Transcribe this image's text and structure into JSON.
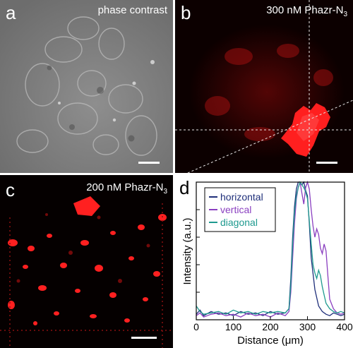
{
  "panels": {
    "a": {
      "letter": "a",
      "title": "phase contrast"
    },
    "b": {
      "letter": "b",
      "title_main": "300 nM Phazr-N",
      "title_sub": "3"
    },
    "c": {
      "letter": "c",
      "title_main": "200 nM Phazr-N",
      "title_sub": "3"
    },
    "d": {
      "letter": "d"
    }
  },
  "colors": {
    "horizontal": "#1f2f7a",
    "vertical": "#8a3fc0",
    "diagonal": "#1f9a8f",
    "fluorescence": "#ff1a1a"
  },
  "chart_data": {
    "type": "line",
    "xlabel": "Distance (μm)",
    "ylabel": "Intensity (a.u.)",
    "xlim": [
      0,
      400
    ],
    "ylim": [
      0,
      1
    ],
    "xticks": [
      0,
      100,
      200,
      300,
      400
    ],
    "yticks": [
      0,
      0.2,
      0.4,
      0.6,
      0.8,
      1.0
    ],
    "ytick_labels_visible": false,
    "grid": false,
    "legend_position": "top-left",
    "series": [
      {
        "name": "horizontal",
        "color": "#1f2f7a",
        "x": [
          0,
          10,
          20,
          40,
          60,
          80,
          100,
          120,
          140,
          160,
          180,
          200,
          220,
          240,
          250,
          255,
          260,
          265,
          270,
          275,
          280,
          285,
          290,
          295,
          300,
          305,
          310,
          320,
          330,
          340,
          350,
          360,
          370,
          380,
          390,
          400
        ],
        "y": [
          0.04,
          0.07,
          0.03,
          0.06,
          0.04,
          0.05,
          0.03,
          0.06,
          0.04,
          0.05,
          0.03,
          0.06,
          0.04,
          0.05,
          0.08,
          0.3,
          0.6,
          0.82,
          0.95,
          1.0,
          1.0,
          0.98,
          1.0,
          0.94,
          0.9,
          0.7,
          0.45,
          0.22,
          0.1,
          0.06,
          0.04,
          0.03,
          0.05,
          0.04,
          0.03,
          0.04
        ]
      },
      {
        "name": "vertical",
        "color": "#8a3fc0",
        "x": [
          0,
          10,
          20,
          40,
          60,
          80,
          100,
          120,
          140,
          160,
          180,
          200,
          220,
          240,
          250,
          255,
          260,
          265,
          270,
          275,
          280,
          285,
          290,
          295,
          300,
          305,
          310,
          315,
          320,
          325,
          330,
          335,
          340,
          345,
          350,
          355,
          360,
          370,
          380,
          390,
          400
        ],
        "y": [
          0.03,
          0.05,
          0.02,
          0.04,
          0.05,
          0.03,
          0.04,
          0.02,
          0.05,
          0.03,
          0.04,
          0.02,
          0.05,
          0.03,
          0.06,
          0.2,
          0.45,
          0.7,
          0.88,
          0.96,
          1.0,
          0.92,
          0.84,
          0.96,
          1.0,
          0.95,
          0.8,
          0.68,
          0.6,
          0.66,
          0.62,
          0.52,
          0.48,
          0.55,
          0.5,
          0.32,
          0.15,
          0.08,
          0.05,
          0.04,
          0.05
        ]
      },
      {
        "name": "diagonal",
        "color": "#1f9a8f",
        "x": [
          0,
          10,
          20,
          40,
          60,
          80,
          100,
          120,
          140,
          160,
          180,
          200,
          220,
          240,
          250,
          255,
          260,
          265,
          270,
          275,
          280,
          285,
          290,
          295,
          300,
          305,
          310,
          315,
          320,
          325,
          330,
          335,
          340,
          345,
          350,
          360,
          370,
          380,
          390,
          400
        ],
        "y": [
          0.1,
          0.06,
          0.04,
          0.05,
          0.06,
          0.04,
          0.07,
          0.05,
          0.06,
          0.04,
          0.06,
          0.05,
          0.06,
          0.05,
          0.08,
          0.25,
          0.55,
          0.78,
          0.9,
          0.96,
          1.0,
          0.98,
          0.96,
          0.93,
          0.88,
          0.72,
          0.55,
          0.4,
          0.34,
          0.3,
          0.36,
          0.32,
          0.24,
          0.18,
          0.12,
          0.08,
          0.06,
          0.05,
          0.06,
          0.05
        ]
      }
    ]
  }
}
